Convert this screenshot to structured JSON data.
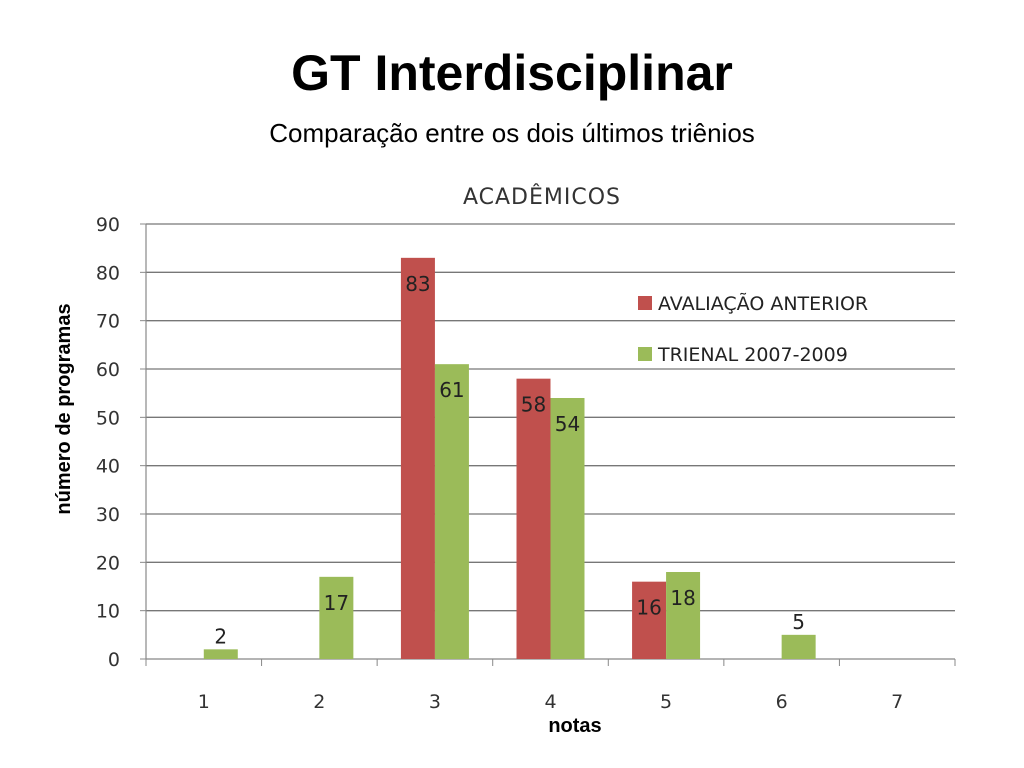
{
  "slide": {
    "title": "GT Interdisciplinar",
    "subtitle": "Comparação entre  os dois últimos triênios"
  },
  "colors": {
    "series_anterior": "#c0504d",
    "series_trienal": "#9bbb59",
    "gridline": "#777777",
    "background": "#ffffff"
  },
  "chart_data": {
    "type": "bar",
    "title": "ACADÊMICOS",
    "xlabel": "notas",
    "ylabel": "número de programas",
    "categories": [
      "1",
      "2",
      "3",
      "4",
      "5",
      "6",
      "7"
    ],
    "series": [
      {
        "name": "AVALIAÇÃO ANTERIOR",
        "values": [
          0,
          0,
          83,
          58,
          16,
          0,
          0
        ]
      },
      {
        "name": "TRIENAL 2007-2009",
        "values": [
          2,
          17,
          61,
          54,
          18,
          5,
          0
        ]
      }
    ],
    "data_labels": [
      {
        "series": 1,
        "category": 0,
        "text": "2"
      },
      {
        "series": 1,
        "category": 1,
        "text": "17"
      },
      {
        "series": 0,
        "category": 2,
        "text": "83"
      },
      {
        "series": 1,
        "category": 2,
        "text": "61"
      },
      {
        "series": 0,
        "category": 3,
        "text": "58"
      },
      {
        "series": 1,
        "category": 3,
        "text": "54"
      },
      {
        "series": 0,
        "category": 4,
        "text": "16"
      },
      {
        "series": 1,
        "category": 4,
        "text": "18"
      },
      {
        "series": 1,
        "category": 5,
        "text": "5"
      }
    ],
    "ylim": [
      0,
      90
    ],
    "yticks": [
      "0",
      "10",
      "20",
      "30",
      "40",
      "50",
      "60",
      "70",
      "80",
      "90"
    ],
    "grid": true,
    "legend_position": "right"
  }
}
